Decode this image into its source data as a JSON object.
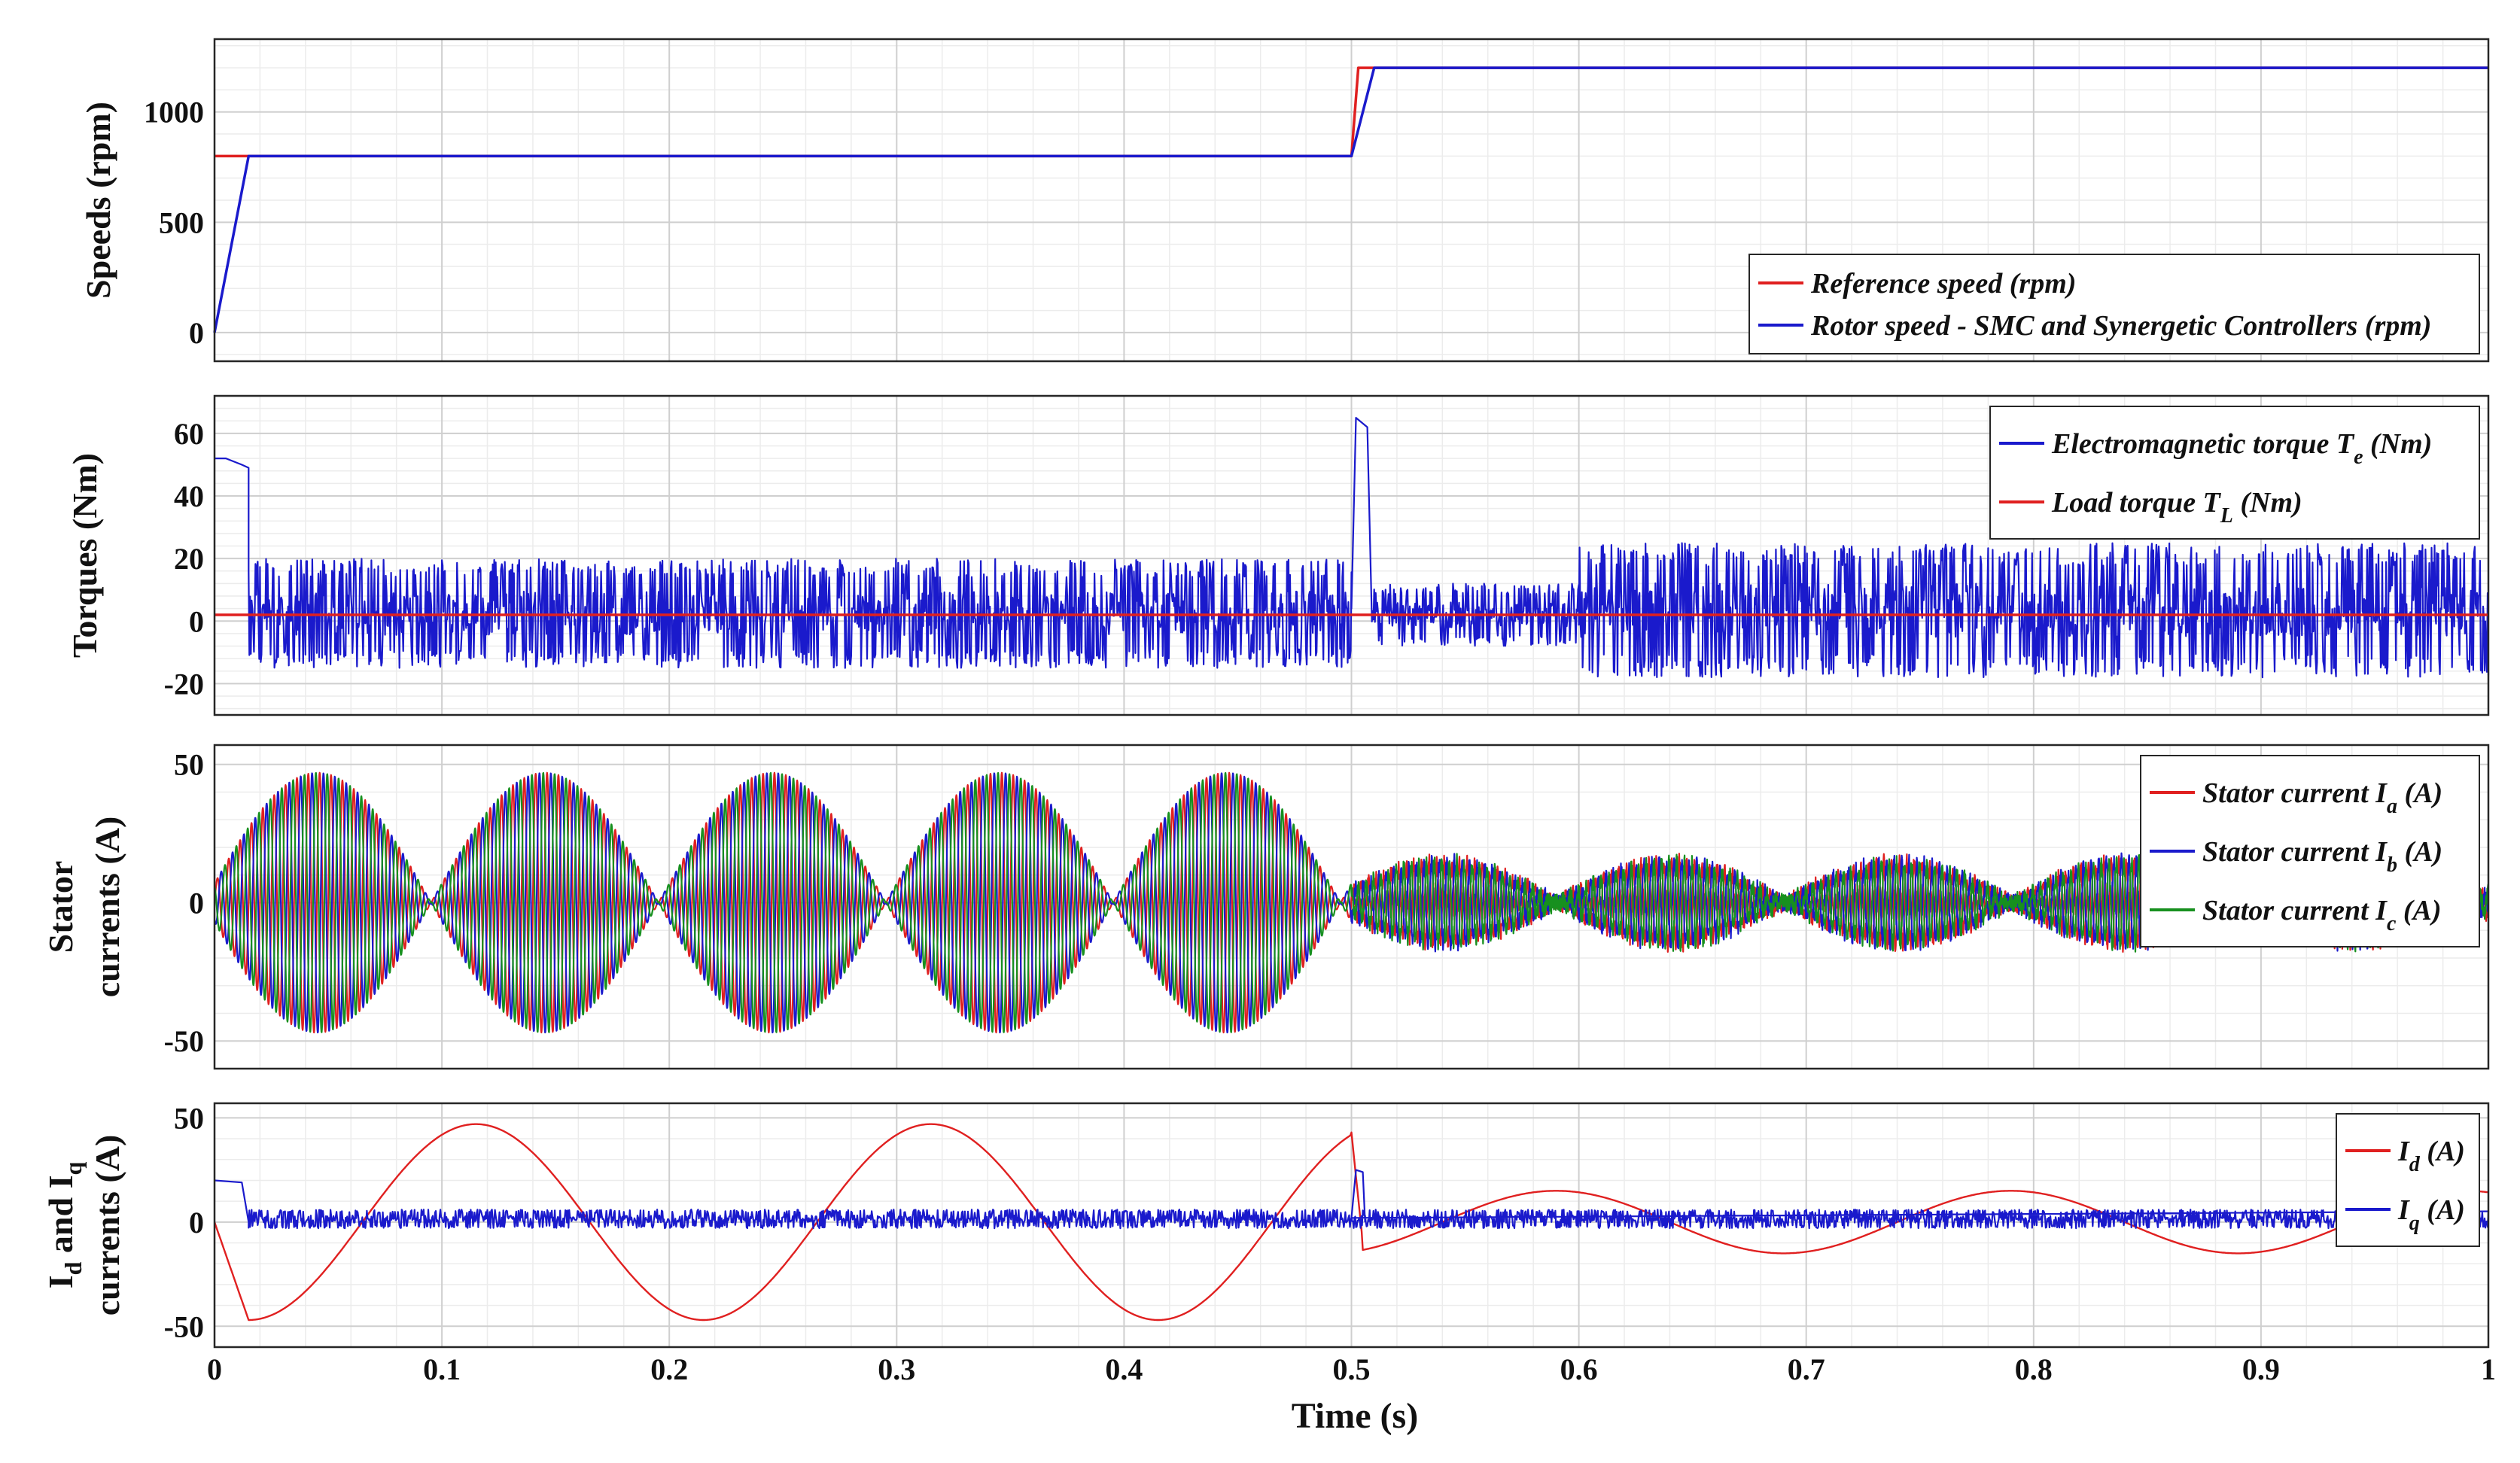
{
  "chart_data": {
    "type": "line",
    "xlabel": "Time (s)",
    "xlim": [
      0,
      1
    ],
    "xticks": [
      "0",
      "0.1",
      "0.2",
      "0.3",
      "0.4",
      "0.5",
      "0.6",
      "0.7",
      "0.8",
      "0.9",
      "1"
    ],
    "grid": true,
    "colors": {
      "red": "#e02020",
      "blue": "#1a1acc",
      "green": "#17901f"
    },
    "panels": [
      {
        "id": "speeds",
        "ylabel": [
          "Speeds (rpm)"
        ],
        "ylim": [
          -130,
          1330
        ],
        "yticks": [
          0,
          500,
          1000
        ],
        "legend": {
          "placement": "bottom-right",
          "entries": [
            {
              "text": "Reference speed (rpm)",
              "sub": "",
              "suffix": "",
              "color": "#e02020"
            },
            {
              "text": "Rotor speed - SMC and Synergetic Controllers (rpm)",
              "sub": "",
              "suffix": "",
              "color": "#1a1acc"
            }
          ]
        },
        "series": [
          {
            "name": "Reference speed (rpm)",
            "color": "#e02020",
            "x": [
              0,
              0.5,
              0.5,
              0.503,
              1
            ],
            "y": [
              800,
              800,
              800,
              1200,
              1200
            ]
          },
          {
            "name": "Rotor speed - SMC and Synergetic Controllers (rpm)",
            "color": "#1a1acc",
            "x": [
              0,
              0.015,
              0.5,
              0.51,
              1
            ],
            "y": [
              0,
              800,
              800,
              1200,
              1200
            ]
          }
        ]
      },
      {
        "id": "torques",
        "ylabel": [
          "Torques (Nm)"
        ],
        "ylim": [
          -30,
          72
        ],
        "yticks": [
          -20,
          0,
          20,
          40,
          60
        ],
        "legend": {
          "placement": "top-right",
          "entries": [
            {
              "text": "Electromagnetic torque T",
              "sub": "e",
              "suffix": " (Nm)",
              "color": "#1a1acc"
            },
            {
              "text": "Load torque T",
              "sub": "L",
              "suffix": " (Nm)",
              "color": "#e02020"
            }
          ]
        },
        "series": [
          {
            "name": "Electromagnetic torque Te (Nm)",
            "color": "#1a1acc",
            "kind": "torque",
            "startup": {
              "x": [
                0,
                0.005,
                0.012,
                0.015
              ],
              "y": [
                52,
                52,
                50,
                49
              ]
            },
            "transient": {
              "x": [
                0.5,
                0.502,
                0.507,
                0.509
              ],
              "y": [
                4,
                65,
                62,
                0
              ]
            },
            "band": [
              {
                "x": [
                  0.015,
                  0.5
                ],
                "min": -15,
                "max": 20
              },
              {
                "x": [
                  0.509,
                  0.6
                ],
                "min": -8,
                "max": 12
              },
              {
                "x": [
                  0.6,
                  1.0
                ],
                "min": -18,
                "max": 25
              }
            ]
          },
          {
            "name": "Load torque TL (Nm)",
            "color": "#e02020",
            "x": [
              0,
              1
            ],
            "y": [
              2,
              2
            ]
          }
        ]
      },
      {
        "id": "stator",
        "ylabel": [
          "Stator",
          "currents (A)"
        ],
        "ylim": [
          -60,
          57
        ],
        "yticks": [
          -50,
          0,
          50
        ],
        "legend": {
          "placement": "top-right",
          "entries": [
            {
              "text": "Stator current I",
              "sub": "a",
              "suffix": " (A)",
              "color": "#e02020"
            },
            {
              "text": "Stator current I",
              "sub": "b",
              "suffix": " (A)",
              "color": "#1a1acc"
            },
            {
              "text": "Stator current I",
              "sub": "c",
              "suffix": " (A)",
              "color": "#17901f"
            }
          ]
        },
        "series": [
          {
            "name": "Stator current Ia (A)",
            "color": "#e02020",
            "kind": "phase",
            "phase_deg": 0
          },
          {
            "name": "Stator current Ib (A)",
            "color": "#1a1acc",
            "kind": "phase",
            "phase_deg": -120
          },
          {
            "name": "Stator current Ic (A)",
            "color": "#17901f",
            "kind": "phase",
            "phase_deg": 120
          }
        ],
        "envelope": {
          "amplitude_A": [
            47,
            15
          ],
          "beat_period_s": [
            0.1,
            0.1
          ],
          "carrier_hz": [
            200,
            300
          ],
          "switch_s": 0.5
        }
      },
      {
        "id": "idq",
        "ylabel": [
          "I  and I",
          "currents (A)"
        ],
        "ylabel_subs": [
          "d",
          "q"
        ],
        "ylim": [
          -60,
          57
        ],
        "yticks": [
          -50,
          0,
          50
        ],
        "legend": {
          "placement": "top-right",
          "entries": [
            {
              "text": "I",
              "sub": "d",
              "suffix": " (A)",
              "color": "#e02020"
            },
            {
              "text": "I",
              "sub": "q",
              "suffix": " (A)",
              "color": "#1a1acc"
            }
          ]
        },
        "series": [
          {
            "name": "Id (A)",
            "color": "#e02020",
            "kind": "id",
            "amplitude_A": [
              47,
              15
            ],
            "period_s": 0.2
          },
          {
            "name": "Iq (A)",
            "color": "#1a1acc",
            "kind": "iq",
            "startup": {
              "x": [
                0,
                0.012,
                0.015
              ],
              "y": [
                20,
                19,
                0
              ]
            },
            "transient": {
              "x": [
                0.5,
                0.502,
                0.505,
                0.506
              ],
              "y": [
                2,
                25,
                24,
                0
              ]
            },
            "band": [
              {
                "x": [
                  0.015,
                  1.0
                ],
                "min": -3,
                "max": 6
              }
            ]
          }
        ]
      }
    ]
  }
}
